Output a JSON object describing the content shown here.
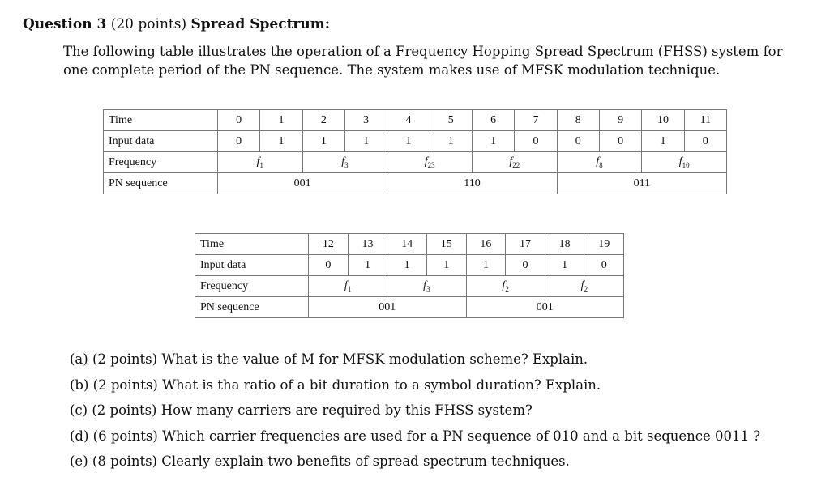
{
  "question": {
    "number": "Question 3",
    "points": "(20 points)",
    "title": "Spread Spectrum:",
    "intro": "The following table illustrates the operation of a Frequency Hopping Spread Spectrum (FHSS) system for one complete period of the PN sequence. The system makes use of MFSK modulation technique."
  },
  "tables": [
    {
      "row_labels": [
        "Time",
        "Input data",
        "Frequency",
        "PN sequence"
      ],
      "time": [
        "0",
        "1",
        "2",
        "3",
        "4",
        "5",
        "6",
        "7",
        "8",
        "9",
        "10",
        "11"
      ],
      "input": [
        "0",
        "1",
        "1",
        "1",
        "1",
        "1",
        "1",
        "0",
        "0",
        "0",
        "1",
        "0"
      ],
      "frequency": [
        {
          "base": "f",
          "sub": "1"
        },
        {
          "base": "f",
          "sub": "3"
        },
        {
          "base": "f",
          "sub": "23"
        },
        {
          "base": "f",
          "sub": "22"
        },
        {
          "base": "f",
          "sub": "8"
        },
        {
          "base": "f",
          "sub": "10"
        }
      ],
      "pn": [
        "001",
        "110",
        "011"
      ]
    },
    {
      "row_labels": [
        "Time",
        "Input data",
        "Frequency",
        "PN sequence"
      ],
      "time": [
        "12",
        "13",
        "14",
        "15",
        "16",
        "17",
        "18",
        "19"
      ],
      "input": [
        "0",
        "1",
        "1",
        "1",
        "1",
        "0",
        "1",
        "0"
      ],
      "frequency": [
        {
          "base": "f",
          "sub": "1"
        },
        {
          "base": "f",
          "sub": "3"
        },
        {
          "base": "f",
          "sub": "2"
        },
        {
          "base": "f",
          "sub": "2"
        }
      ],
      "pn": [
        "001",
        "001"
      ]
    }
  ],
  "parts": [
    "(a)  (2 points) What is the value of M for MFSK modulation scheme? Explain.",
    "(b)  (2 points) What is tha ratio of a bit duration to a symbol duration? Explain.",
    "(c)  (2 points) How many carriers are required by this FHSS system?",
    "(d)  (6 points) Which carrier frequencies are used for a PN sequence of 010 and a bit sequence 0011 ?",
    "(e)  (8 points) Clearly explain two benefits of spread spectrum techniques."
  ]
}
